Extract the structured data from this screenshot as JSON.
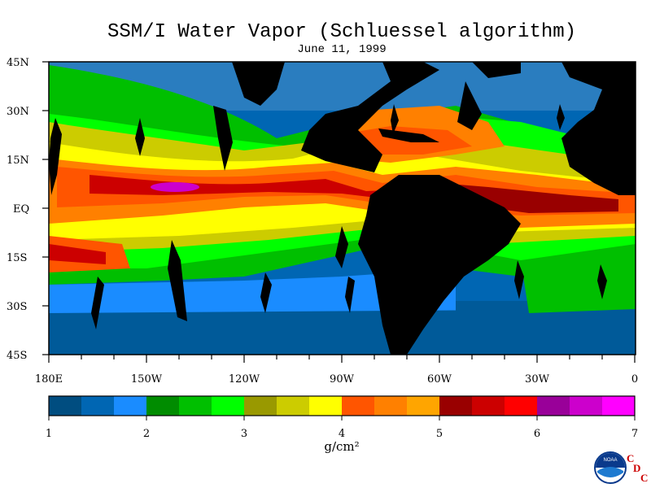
{
  "title": "SSM/I Water Vapor (Schluessel algorithm)",
  "date": "June 11, 1999",
  "lat_labels": [
    "45N",
    "30N",
    "15N",
    "EQ",
    "15S",
    "30S",
    "45S"
  ],
  "lon_labels": [
    "180E",
    "150W",
    "120W",
    "90W",
    "60W",
    "30W",
    "0"
  ],
  "colorbar": {
    "tick_labels": [
      "1",
      "2",
      "3",
      "4",
      "5",
      "6",
      "7"
    ],
    "unit": "g/cm²",
    "colors": [
      "#004d80",
      "#0066b3",
      "#1a8cff",
      "#008c00",
      "#00bf00",
      "#00ff00",
      "#999900",
      "#cccc00",
      "#ffff00",
      "#ff5500",
      "#ff8000",
      "#ffa500",
      "#990000",
      "#cc0000",
      "#ff0000",
      "#990099",
      "#cc00cc",
      "#ff00ff"
    ]
  },
  "logo_text": "NOAA",
  "cdc_letters": [
    "C",
    "D",
    "C"
  ]
}
